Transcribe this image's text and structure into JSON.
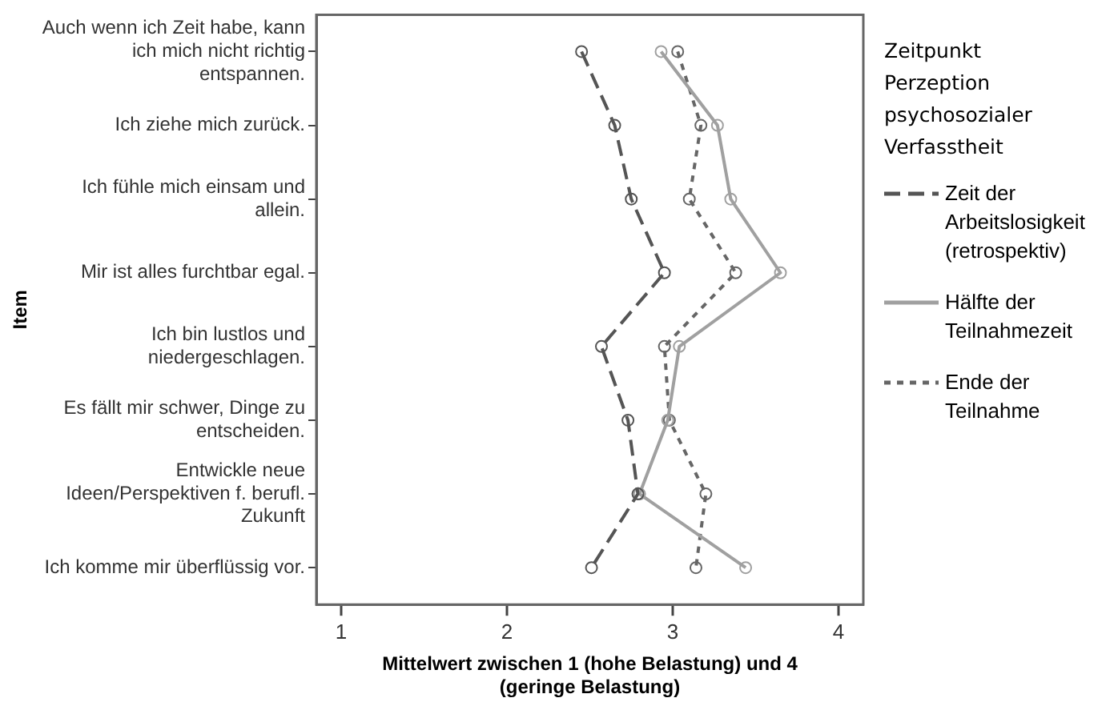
{
  "chart_data": {
    "type": "line",
    "orientation": "horizontal",
    "xlabel": "Mittelwert zwischen 1 (hohe Belastung) und 4 (geringe Belastung)",
    "ylabel": "Item",
    "legend_title": "Zeitpunkt Perzeption psychosozialer Verfasstheit",
    "legend": "right",
    "marker": "circle",
    "grid": false,
    "categories": [
      "Auch wenn ich Zeit habe, kann ich mich nicht richtig entspannen.",
      "Ich ziehe mich zurück.",
      "Ich fühle mich einsam und allein.",
      "Mir ist alles furchtbar egal.",
      "Ich bin lustlos und niedergeschlagen.",
      "Es fällt mir schwer, Dinge zu entscheiden.",
      "Entwickle neue Ideen/Perspektiven f. berufl. Zukunft",
      "Ich komme mir überflüssig vor."
    ],
    "xlim": [
      0.85,
      4.15
    ],
    "xticks": [
      1,
      2,
      3,
      4
    ],
    "series": [
      {
        "name": "Zeit der Arbeitslosigkeit (retrospektiv)",
        "color": "#555555",
        "line_style": "dashed",
        "values": [
          2.45,
          2.65,
          2.75,
          2.95,
          2.57,
          2.73,
          2.79,
          2.51
        ]
      },
      {
        "name": "Hälfte der Teilnahmezeit",
        "color": "#a0a0a0",
        "line_style": "solid",
        "values": [
          2.93,
          3.27,
          3.35,
          3.65,
          3.04,
          2.97,
          2.8,
          3.44
        ]
      },
      {
        "name": "Ende der Teilnahme",
        "color": "#666666",
        "line_style": "dotted",
        "values": [
          3.03,
          3.17,
          3.1,
          3.38,
          2.95,
          2.98,
          3.2,
          3.14
        ]
      }
    ]
  }
}
